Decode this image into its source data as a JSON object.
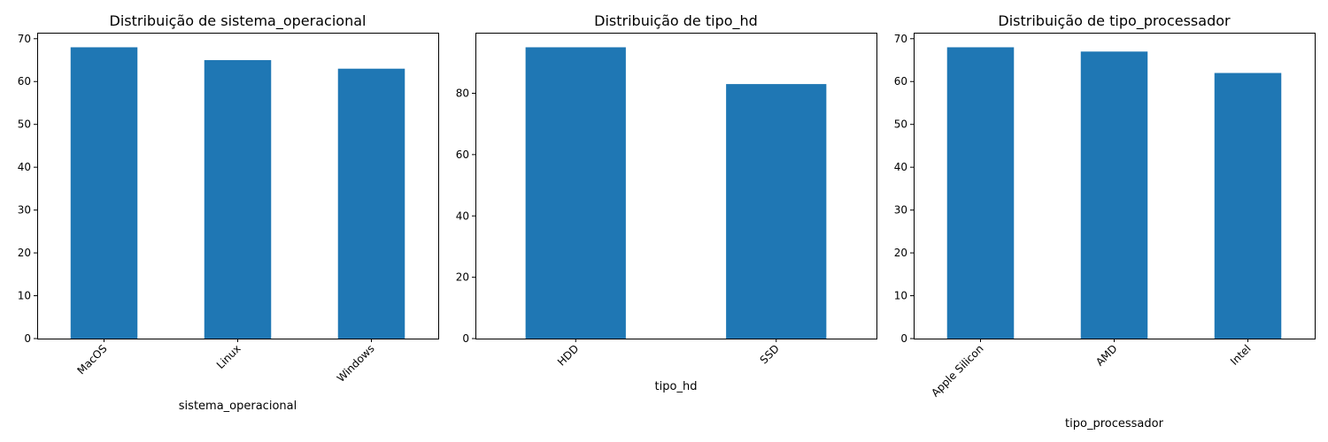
{
  "chart_data": [
    {
      "type": "bar",
      "title": "Distribuição de sistema_operacional",
      "xlabel": "sistema_operacional",
      "ylabel": "",
      "categories": [
        "MacOS",
        "Linux",
        "Windows"
      ],
      "values": [
        68,
        65,
        63
      ],
      "ylim": [
        0,
        71.4
      ],
      "yticks": [
        0,
        10,
        20,
        30,
        40,
        50,
        60,
        70
      ],
      "color": "#1f77b4",
      "grid": false,
      "xtick_rotation": 45
    },
    {
      "type": "bar",
      "title": "Distribuição de tipo_hd",
      "xlabel": "tipo_hd",
      "ylabel": "",
      "categories": [
        "HDD",
        "SSD"
      ],
      "values": [
        95,
        83
      ],
      "ylim": [
        0,
        99.75
      ],
      "yticks": [
        0,
        20,
        40,
        60,
        80
      ],
      "color": "#1f77b4",
      "grid": false,
      "xtick_rotation": 45
    },
    {
      "type": "bar",
      "title": "Distribuição de tipo_processador",
      "xlabel": "tipo_processador",
      "ylabel": "",
      "categories": [
        "Apple Silicon",
        "AMD",
        "Intel"
      ],
      "values": [
        68,
        67,
        62
      ],
      "ylim": [
        0,
        71.4
      ],
      "yticks": [
        0,
        10,
        20,
        30,
        40,
        50,
        60,
        70
      ],
      "color": "#1f77b4",
      "grid": false,
      "xtick_rotation": 45
    }
  ]
}
